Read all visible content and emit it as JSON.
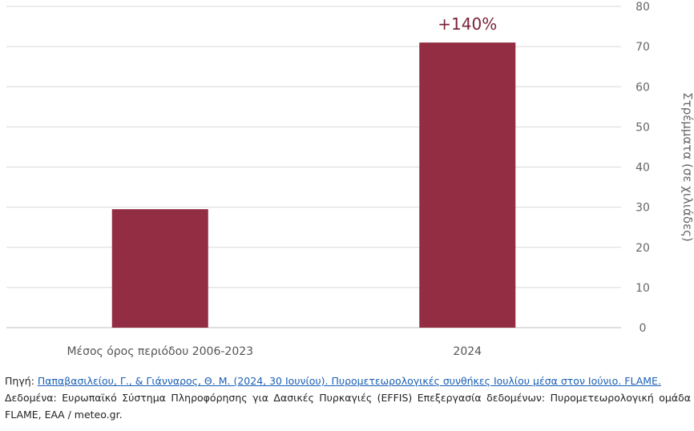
{
  "chart_data": {
    "type": "bar",
    "categories": [
      "Μέσος όρος περιόδου 2006-2023",
      "2024"
    ],
    "values": [
      29.5,
      71
    ],
    "ylabel": "Στρέμματα (σε χιλιάδες)",
    "ylim": [
      0,
      80
    ],
    "yticks": [
      0,
      10,
      20,
      30,
      40,
      50,
      60,
      70,
      80
    ],
    "y_axis_side": "right",
    "grid": true,
    "annotation": "+140%",
    "bar_color": "#922d43",
    "annotation_color": "#7b2238"
  },
  "source": {
    "label": "Πηγή:",
    "link_text": "Παπαβασιλείου, Γ., & Γιάνναρος, Θ. Μ. (2024, 30 Ιουνίου). Πυρομετεωρολογικές συνθήκες Ιουλίου μέσα στον Ιούνιο. FLAME.",
    "data_line": "Δεδομένα: Ευρωπαϊκό Σύστημα Πληροφόρησης για Δασικές Πυρκαγιές (EFFIS) Επεξεργασία δεδομένων: Πυρομετεωρολογική ομάδα FLAME, ΕΑΑ / meteo.gr."
  }
}
